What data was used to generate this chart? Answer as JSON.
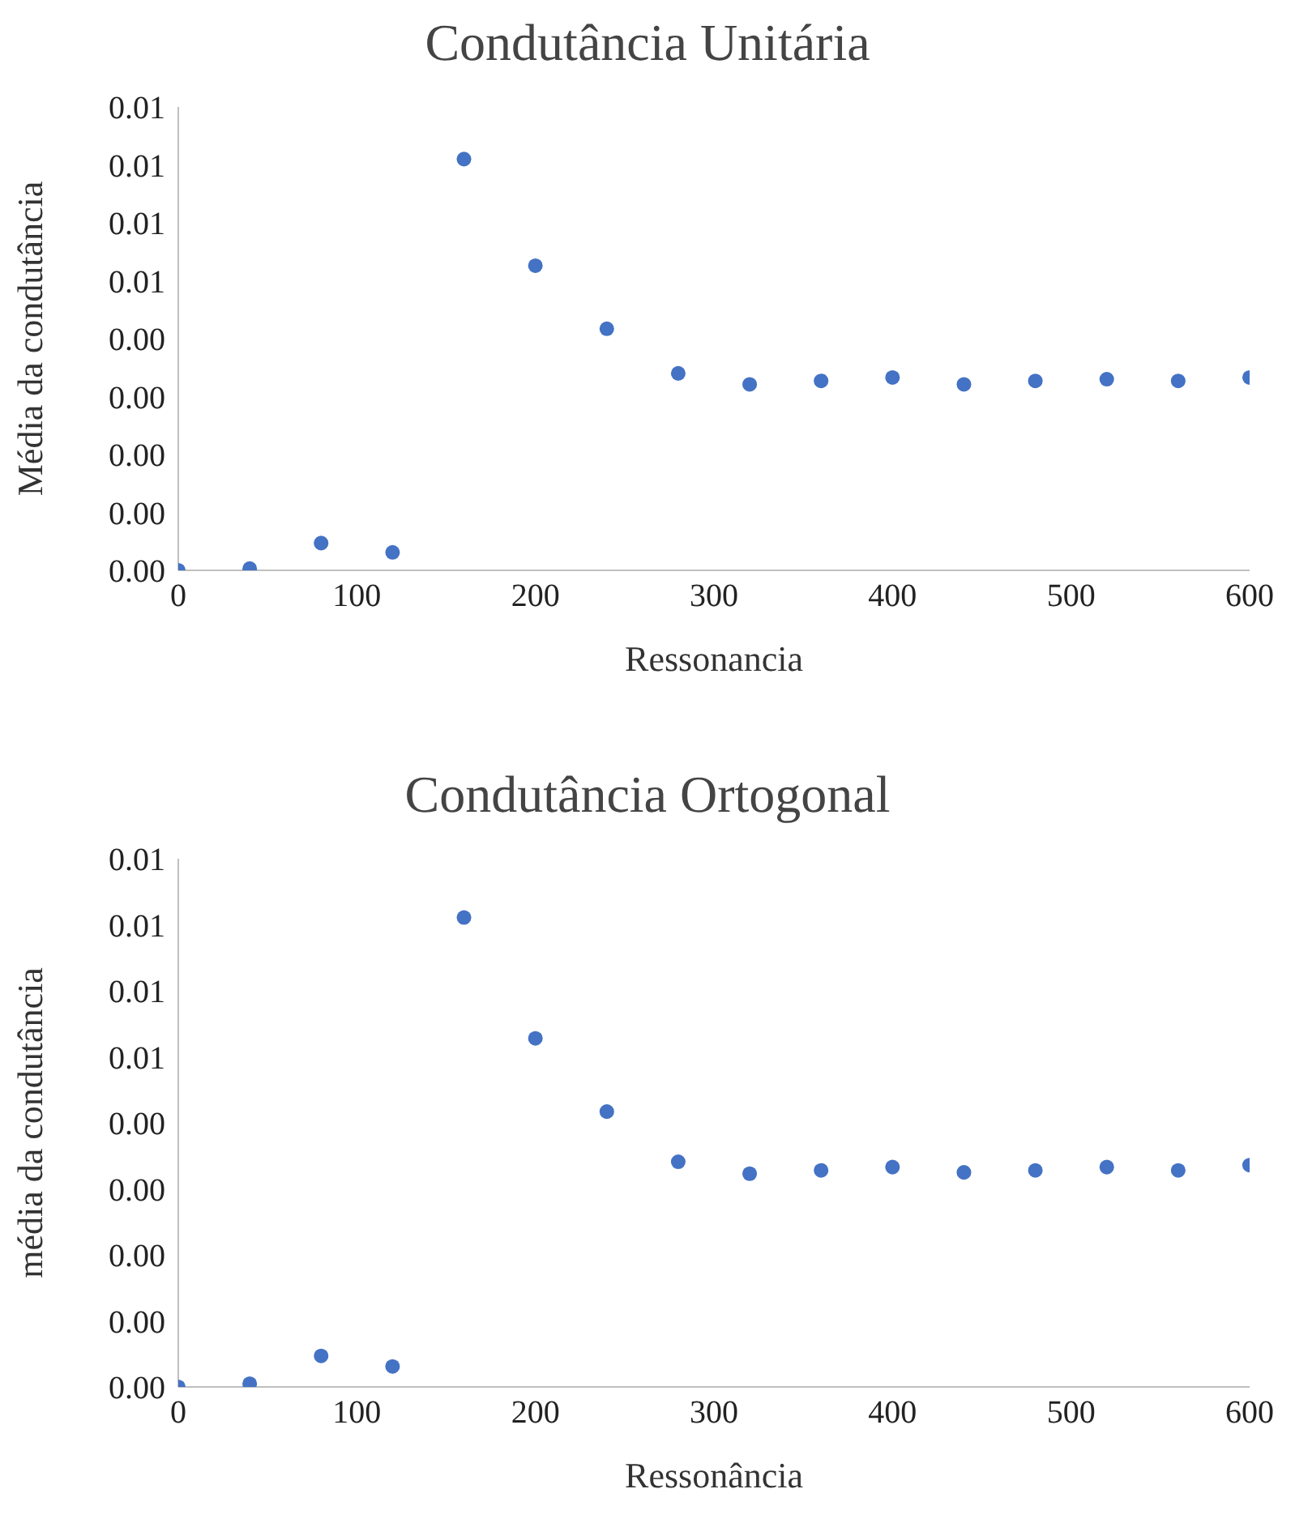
{
  "chart_data": [
    {
      "type": "scatter",
      "title": "Condutância Unitária",
      "xlabel": "Ressonancia",
      "ylabel": "Média da condutância",
      "marker": "circle",
      "x": [
        0,
        40,
        80,
        120,
        160,
        200,
        240,
        280,
        320,
        360,
        400,
        440,
        480,
        520,
        560,
        600
      ],
      "series": [
        {
          "color": "#4472c4",
          "values": [
            0,
            3e-05,
            0.00047,
            0.00031,
            0.0071,
            0.00526,
            0.00417,
            0.0034,
            0.00321,
            0.00327,
            0.00333,
            0.00321,
            0.00327,
            0.0033,
            0.00327,
            0.00333
          ]
        }
      ],
      "xlim": [
        0,
        600
      ],
      "xticks": [
        0,
        100,
        200,
        300,
        400,
        500,
        600
      ],
      "ylim": [
        0,
        0.008
      ],
      "yticks": [
        {
          "value": 0,
          "label": "0.00"
        },
        {
          "value": 0.001,
          "label": "0.00"
        },
        {
          "value": 0.002,
          "label": "0.00"
        },
        {
          "value": 0.003,
          "label": "0.00"
        },
        {
          "value": 0.004,
          "label": "0.00"
        },
        {
          "value": 0.005,
          "label": "0.01"
        },
        {
          "value": 0.006,
          "label": "0.01"
        },
        {
          "value": 0.007,
          "label": "0.01"
        },
        {
          "value": 0.008,
          "label": "0.01"
        }
      ]
    },
    {
      "type": "scatter",
      "title": "Condutância Ortogonal",
      "xlabel": "Ressonância",
      "ylabel": "média da condutância",
      "marker": "circle",
      "x": [
        0,
        40,
        80,
        120,
        160,
        200,
        240,
        280,
        320,
        360,
        400,
        440,
        480,
        520,
        560,
        600
      ],
      "series": [
        {
          "color": "#4472c4",
          "values": [
            0,
            5e-05,
            0.00047,
            0.00031,
            0.00711,
            0.00528,
            0.00417,
            0.00341,
            0.00323,
            0.00328,
            0.00333,
            0.00325,
            0.00328,
            0.00333,
            0.00328,
            0.00336
          ]
        }
      ],
      "xlim": [
        0,
        600
      ],
      "xticks": [
        0,
        100,
        200,
        300,
        400,
        500,
        600
      ],
      "ylim": [
        0,
        0.008
      ],
      "yticks": [
        {
          "value": 0,
          "label": "0.00"
        },
        {
          "value": 0.001,
          "label": "0.00"
        },
        {
          "value": 0.002,
          "label": "0.00"
        },
        {
          "value": 0.003,
          "label": "0.00"
        },
        {
          "value": 0.004,
          "label": "0.00"
        },
        {
          "value": 0.005,
          "label": "0.01"
        },
        {
          "value": 0.006,
          "label": "0.01"
        },
        {
          "value": 0.007,
          "label": "0.01"
        },
        {
          "value": 0.008,
          "label": "0.01"
        }
      ]
    }
  ]
}
